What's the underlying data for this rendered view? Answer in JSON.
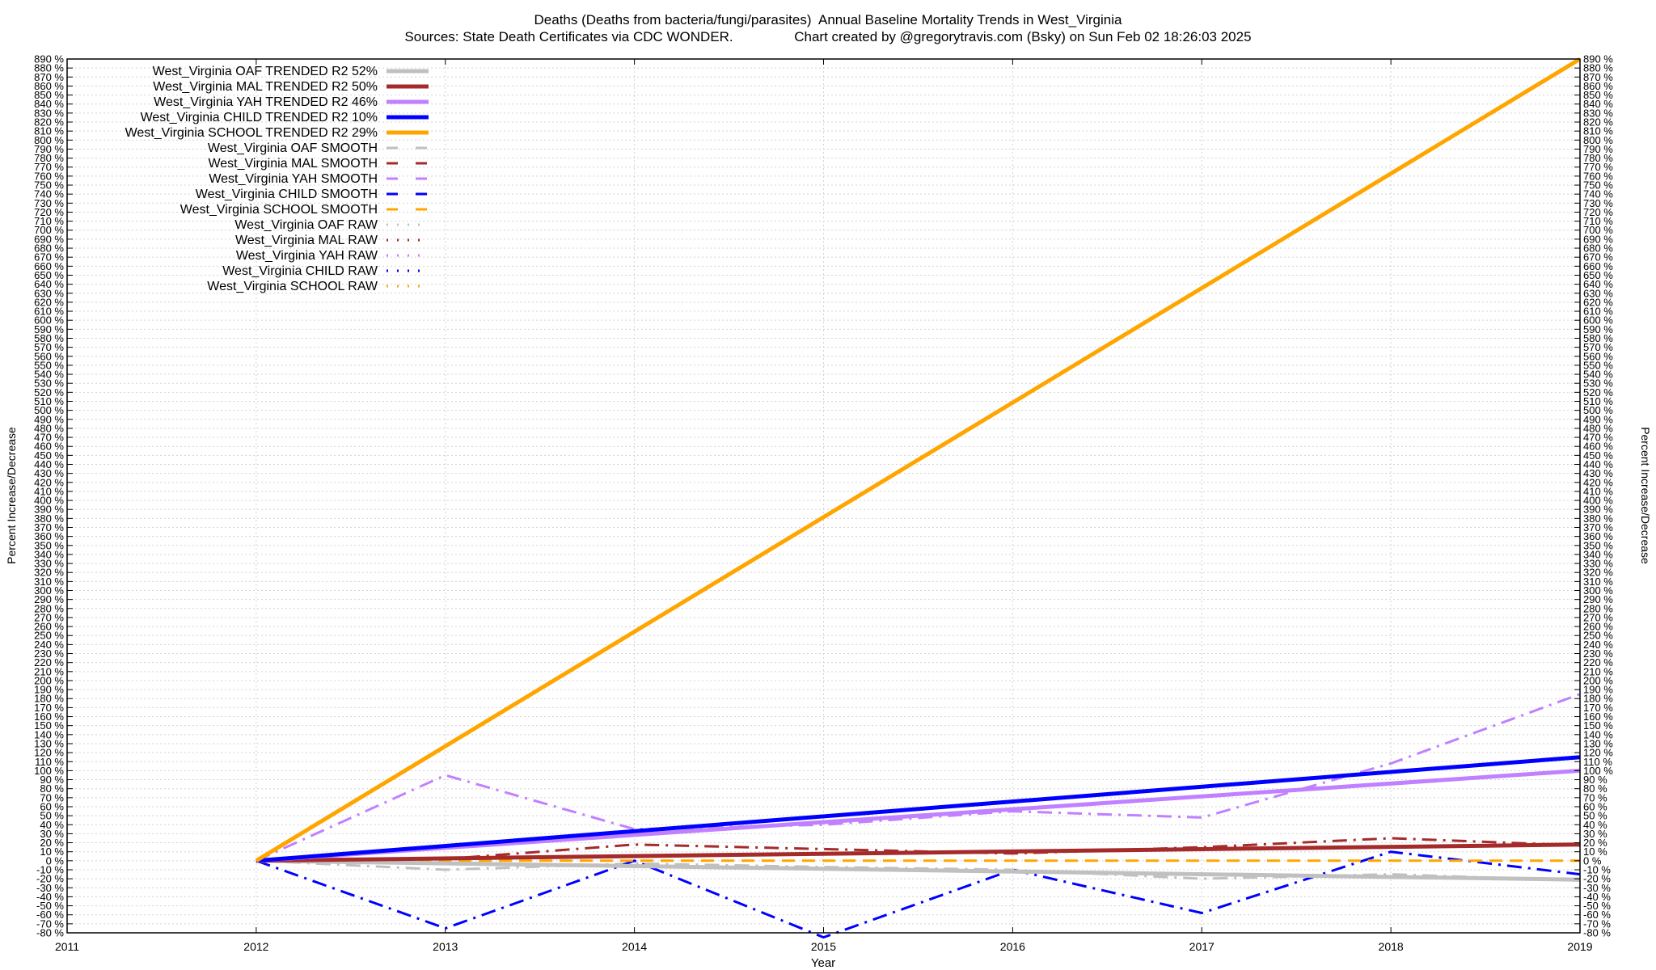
{
  "chart_data": {
    "type": "line",
    "title": "Deaths (Deaths from bacteria/fungi/parasites)  Annual Baseline Mortality Trends in West_Virginia",
    "subtitle": "Sources: State Death Certificates via CDC WONDER.                Chart created by @gregorytravis.com (Bsky) on Sun Feb 02 18:26:03 2025",
    "xlabel": "Year",
    "ylabel": "Percent Increase/Decrease",
    "ylabel_right": "Percent Increase/Decrease",
    "xlim": [
      2011,
      2019
    ],
    "ylim": [
      -80,
      890
    ],
    "x_ticks": [
      2011,
      2012,
      2013,
      2014,
      2015,
      2016,
      2017,
      2018,
      2019
    ],
    "y_tick_step": 10,
    "y_tick_suffix": " %",
    "grid": true,
    "legend_position": "top-left",
    "series": [
      {
        "name": "West_Virginia OAF TRENDED R2  52%",
        "style": "solid",
        "width": 5,
        "color": "#c0c0c0",
        "x": [
          2012,
          2019
        ],
        "values": [
          0,
          -21
        ]
      },
      {
        "name": "West_Virginia MAL TRENDED R2  50%",
        "style": "solid",
        "width": 5,
        "color": "#a52a2a",
        "x": [
          2012,
          2019
        ],
        "values": [
          0,
          18
        ]
      },
      {
        "name": "West_Virginia YAH TRENDED R2  46%",
        "style": "solid",
        "width": 5,
        "color": "#c080ff",
        "x": [
          2012,
          2019
        ],
        "values": [
          0,
          100
        ]
      },
      {
        "name": "West_Virginia CHILD TRENDED R2  10%",
        "style": "solid",
        "width": 5,
        "color": "#0000ff",
        "x": [
          2012,
          2019
        ],
        "values": [
          0,
          115
        ]
      },
      {
        "name": "West_Virginia SCHOOL TRENDED R2  29%",
        "style": "solid",
        "width": 5,
        "color": "#ffa500",
        "x": [
          2012,
          2019
        ],
        "values": [
          0,
          890
        ]
      },
      {
        "name": "West_Virginia OAF SMOOTH",
        "style": "dashdot",
        "width": 3,
        "color": "#c0c0c0",
        "x": [
          2012,
          2013,
          2014,
          2015,
          2016,
          2017,
          2018,
          2019
        ],
        "values": [
          0,
          -10,
          -3,
          -7,
          -10,
          -20,
          -15,
          -22
        ]
      },
      {
        "name": "West_Virginia MAL SMOOTH",
        "style": "dashdot",
        "width": 3,
        "color": "#a52a2a",
        "x": [
          2012,
          2013,
          2014,
          2015,
          2016,
          2017,
          2018,
          2019
        ],
        "values": [
          0,
          2,
          18,
          13,
          8,
          15,
          25,
          17
        ]
      },
      {
        "name": "West_Virginia YAH SMOOTH",
        "style": "dashdot",
        "width": 3,
        "color": "#c080ff",
        "x": [
          2012,
          2013,
          2014,
          2015,
          2016,
          2017,
          2018,
          2019
        ],
        "values": [
          0,
          95,
          35,
          40,
          55,
          48,
          108,
          185
        ]
      },
      {
        "name": "West_Virginia CHILD SMOOTH",
        "style": "dashdot",
        "width": 3,
        "color": "#0000ff",
        "x": [
          2012,
          2013,
          2014,
          2015,
          2016,
          2017,
          2018,
          2019
        ],
        "values": [
          0,
          -75,
          0,
          -85,
          -10,
          -58,
          10,
          -15
        ]
      },
      {
        "name": "West_Virginia SCHOOL SMOOTH",
        "style": "dash",
        "width": 3,
        "color": "#ffa500",
        "x": [
          2012,
          2013,
          2014,
          2015,
          2016,
          2017,
          2018,
          2019
        ],
        "values": [
          0,
          0,
          0,
          0,
          0,
          0,
          0,
          0
        ]
      },
      {
        "name": "West_Virginia OAF RAW",
        "style": "dot",
        "width": 3,
        "color": "#c0c0c0",
        "x": [],
        "values": []
      },
      {
        "name": "West_Virginia MAL RAW",
        "style": "dot",
        "width": 3,
        "color": "#a52a2a",
        "x": [],
        "values": []
      },
      {
        "name": "West_Virginia YAH RAW",
        "style": "dot",
        "width": 3,
        "color": "#c080ff",
        "x": [],
        "values": []
      },
      {
        "name": "West_Virginia CHILD RAW",
        "style": "dot",
        "width": 3,
        "color": "#0000ff",
        "x": [],
        "values": []
      },
      {
        "name": "West_Virginia SCHOOL RAW",
        "style": "dot",
        "width": 3,
        "color": "#ffa500",
        "x": [],
        "values": []
      }
    ]
  }
}
